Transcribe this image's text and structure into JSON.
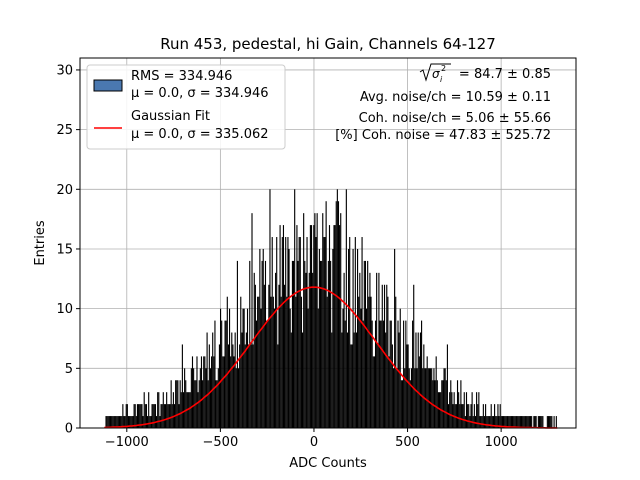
{
  "chart_data": {
    "type": "bar",
    "title": "Run 453, pedestal, hi Gain, Channels 64-127",
    "xlabel": "ADC Counts",
    "ylabel": "Entries",
    "xlim": [
      -1250,
      1400
    ],
    "ylim": [
      0,
      31
    ],
    "x_ticks": [
      -1000,
      -500,
      0,
      500,
      1000
    ],
    "x_tick_labels": [
      "−1000",
      "−500",
      "0",
      "500",
      "1000"
    ],
    "y_ticks": [
      0,
      5,
      10,
      15,
      20,
      25,
      30
    ],
    "y_tick_labels": [
      "0",
      "5",
      "10",
      "15",
      "20",
      "25",
      "30"
    ],
    "grid": true,
    "legend_position": "top-left",
    "series": [
      {
        "kind": "histogram",
        "color": "#000000",
        "legend_title": "RMS = 334.946",
        "legend_detail": "μ = 0.0, σ = 334.946",
        "histogram_envelope": {
          "x": [
            -1120,
            -1000,
            -900,
            -800,
            -700,
            -600,
            -500,
            -400,
            -300,
            -200,
            -100,
            0,
            100,
            200,
            300,
            400,
            500,
            600,
            700,
            800,
            900,
            1000,
            1100,
            1200,
            1300
          ],
          "counts": [
            0.8,
            1.2,
            1.6,
            2.4,
            3.4,
            4.8,
            6.5,
            8.4,
            10.1,
            11.8,
            13.0,
            13.4,
            13.0,
            11.8,
            10.1,
            8.4,
            6.5,
            4.8,
            3.4,
            2.4,
            1.6,
            1.2,
            0.8,
            0.6,
            0.5
          ],
          "peak": 20,
          "x_min": -1120,
          "x_max": 1300
        }
      },
      {
        "kind": "line",
        "color": "#ff0000",
        "legend_title": "Gaussian Fit",
        "legend_detail": "μ = 0.0, σ = 335.062",
        "gaussian": {
          "mu": 0.0,
          "sigma": 335.062,
          "amplitude": 11.8
        },
        "x_range": [
          -1120,
          1300
        ]
      }
    ],
    "annotations": [
      {
        "prefix": "",
        "text": " = 84.7 ± 0.85"
      },
      {
        "prefix": "",
        "text": "Avg. noise/ch = 10.59 ± 0.11"
      },
      {
        "prefix": "",
        "text": "Coh. noise/ch = 5.06 ± 55.66"
      },
      {
        "prefix": "",
        "text": "[%] Coh. noise = 47.83 ± 525.72"
      }
    ],
    "sqrt_symbol": "σ",
    "sqrt_sub": "i",
    "sqrt_sup": "2"
  }
}
